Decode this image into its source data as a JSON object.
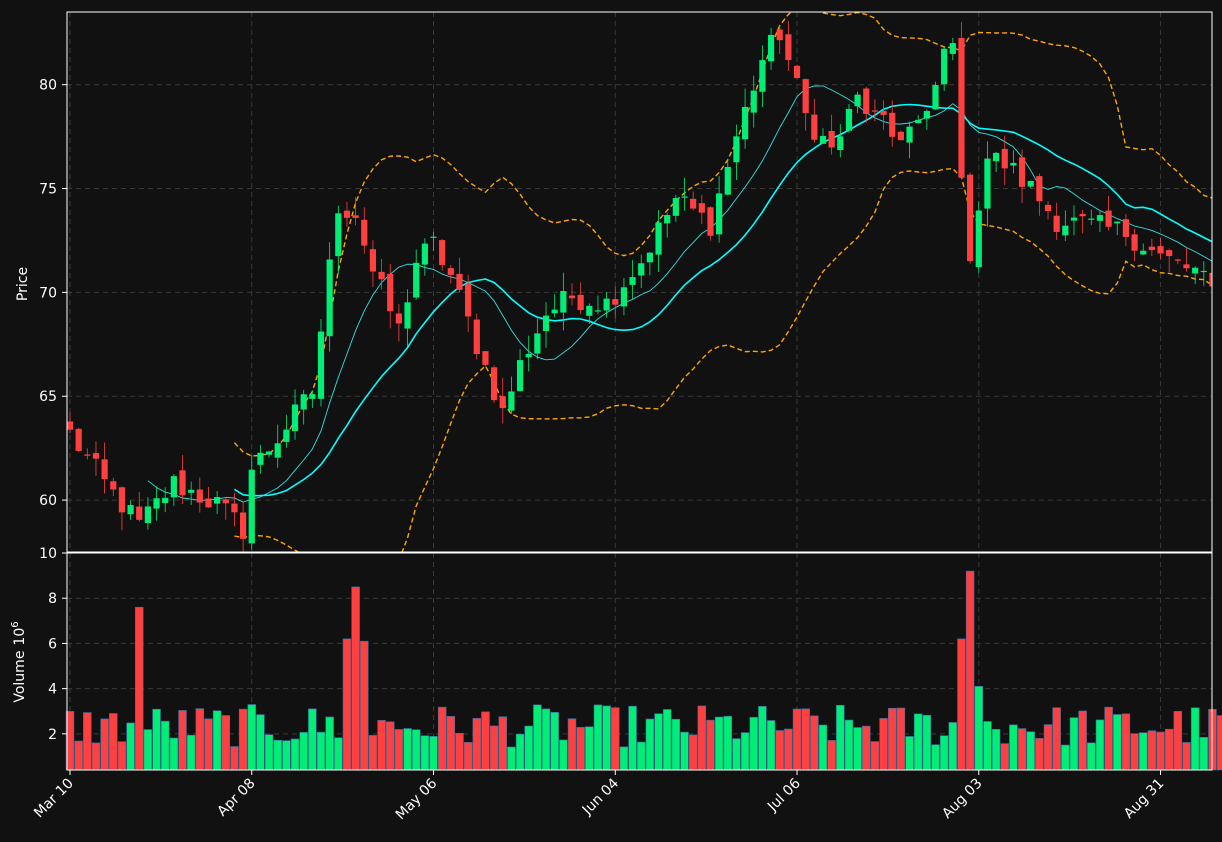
{
  "chart_data": {
    "type": "candlestick",
    "panels": [
      "price",
      "volume"
    ],
    "ylabel_price": "Price",
    "ylabel_volume": "Volume",
    "volume_unit_base": "10",
    "volume_unit_exp": "6",
    "x_tick_labels": [
      "Mar 10",
      "Apr 08",
      "May 06",
      "Jun 04",
      "Jul 06",
      "Aug 03",
      "Aug 31"
    ],
    "x_tick_index": [
      0,
      21,
      42,
      63,
      84,
      105,
      126
    ],
    "price_ylim": [
      57.5,
      83.5
    ],
    "price_yticks": [
      60,
      65,
      70,
      75,
      80
    ],
    "volume_ylim": [
      0.4,
      10.0
    ],
    "volume_yticks": [
      2,
      4,
      6,
      8,
      10
    ],
    "grid": true,
    "colors": {
      "background": "#111111",
      "up": "#00ee76",
      "down": "#ff4040",
      "ma_fast": "#33e0e0",
      "ma_slow": "#00ffff",
      "bands": "#ffa500",
      "grid": "#3a3a3a",
      "text": "#ffffff"
    },
    "anchors": [
      [
        0,
        63.2
      ],
      [
        4,
        60.8
      ],
      [
        8,
        58.8
      ],
      [
        12,
        60.8
      ],
      [
        17,
        59.8
      ],
      [
        20,
        58.6
      ],
      [
        21,
        61.5
      ],
      [
        24,
        63.0
      ],
      [
        28,
        65.2
      ],
      [
        31,
        74.2
      ],
      [
        33,
        73.8
      ],
      [
        35,
        71.0
      ],
      [
        38,
        68.2
      ],
      [
        40,
        71.5
      ],
      [
        42,
        72.3
      ],
      [
        44,
        70.8
      ],
      [
        47,
        67.5
      ],
      [
        50,
        64.2
      ],
      [
        52,
        66.5
      ],
      [
        55,
        69.0
      ],
      [
        58,
        69.8
      ],
      [
        62,
        69.5
      ],
      [
        66,
        71.5
      ],
      [
        70,
        74.5
      ],
      [
        74,
        73.3
      ],
      [
        77,
        77.5
      ],
      [
        80,
        81.2
      ],
      [
        82,
        82.5
      ],
      [
        85,
        78.5
      ],
      [
        88,
        76.8
      ],
      [
        91,
        79.3
      ],
      [
        95,
        77.5
      ],
      [
        99,
        78.3
      ],
      [
        101,
        81.5
      ],
      [
        102,
        82.5
      ],
      [
        103,
        75.0
      ],
      [
        104,
        72.0
      ],
      [
        106,
        76.5
      ],
      [
        108,
        76.2
      ],
      [
        111,
        75.0
      ],
      [
        114,
        73.5
      ],
      [
        118,
        73.2
      ],
      [
        122,
        72.9
      ],
      [
        126,
        71.7
      ],
      [
        130,
        71.0
      ],
      [
        133,
        69.6
      ]
    ],
    "volume_spikes": [
      [
        8,
        7.6
      ],
      [
        32,
        6.2
      ],
      [
        33,
        8.5
      ],
      [
        34,
        6.1
      ],
      [
        103,
        6.2
      ],
      [
        104,
        9.2
      ],
      [
        105,
        4.1
      ]
    ],
    "bars": 134,
    "ma_short_window": 10,
    "ma_long_window": 20,
    "band_window": 20,
    "band_sigma": 2
  }
}
